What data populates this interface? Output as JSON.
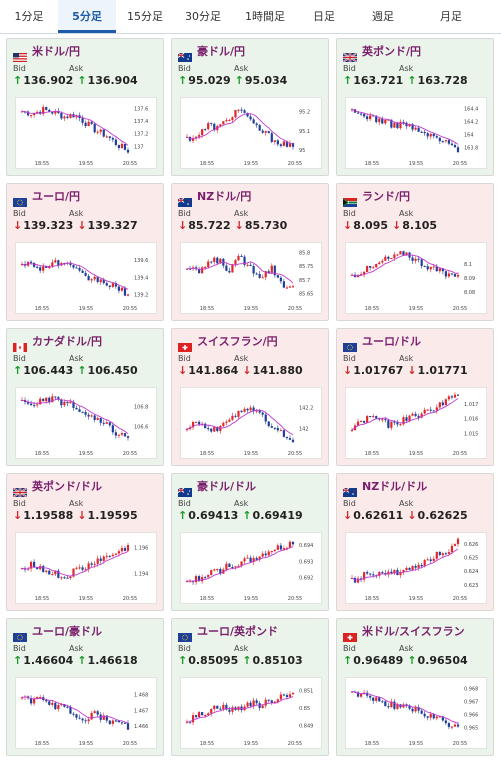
{
  "tabs": [
    {
      "label": "1分足",
      "active": false
    },
    {
      "label": "5分足",
      "active": true
    },
    {
      "label": "15分足",
      "active": false
    },
    {
      "label": "30分足",
      "active": false
    },
    {
      "label": "1時間足",
      "active": false
    },
    {
      "label": "日足",
      "active": false
    },
    {
      "label": "週足",
      "active": false
    },
    {
      "label": "月足",
      "active": false
    }
  ],
  "labels": {
    "bid": "Bid",
    "ask": "Ask"
  },
  "colors": {
    "up_bg": "#eaf4ea",
    "down_bg": "#fbeaea",
    "up_arrow": "#1a9a2a",
    "down_arrow": "#d2262a",
    "bull_candle": "#e0282a",
    "bear_candle": "#1f3f9a",
    "ma_line": "#c23ad1",
    "pair_title": "#7a1f6b"
  },
  "cards": [
    {
      "pair": "米ドル/円",
      "flag": "flag-us-icon",
      "trend": "up",
      "bid": "136.902",
      "ask": "136.904",
      "chart_data": {
        "type": "candlestick",
        "xticks": [
          "18:55",
          "19:55",
          "20:55"
        ],
        "yticks": [
          "137.6",
          "137.4",
          "137.2",
          "137"
        ],
        "ylim": [
          136.88,
          137.7
        ]
      }
    },
    {
      "pair": "豪ドル/円",
      "flag": "flag-au-icon",
      "trend": "up",
      "bid": "95.029",
      "ask": "95.034",
      "chart_data": {
        "type": "candlestick",
        "xticks": [
          "18:55",
          "19:55",
          "20:55"
        ],
        "yticks": [
          "95.2",
          "95.1",
          "95"
        ],
        "ylim": [
          94.98,
          95.25
        ]
      }
    },
    {
      "pair": "英ポンド/円",
      "flag": "flag-gb-icon",
      "trend": "up",
      "bid": "163.721",
      "ask": "163.728",
      "chart_data": {
        "type": "candlestick",
        "xticks": [
          "18:55",
          "19:55",
          "20:55"
        ],
        "yticks": [
          "164.4",
          "164.2",
          "164",
          "163.8"
        ],
        "ylim": [
          163.7,
          164.5
        ]
      }
    },
    {
      "pair": "ユーロ/円",
      "flag": "flag-eu-icon",
      "trend": "down",
      "bid": "139.323",
      "ask": "139.327",
      "chart_data": {
        "type": "candlestick",
        "xticks": [
          "18:55",
          "19:55",
          "20:55"
        ],
        "yticks": [
          "139.6",
          "139.4",
          "139.2"
        ],
        "ylim": [
          139.15,
          139.75
        ]
      }
    },
    {
      "pair": "NZドル/円",
      "flag": "flag-nz-icon",
      "trend": "down",
      "bid": "85.722",
      "ask": "85.730",
      "chart_data": {
        "type": "candlestick",
        "xticks": [
          "18:55",
          "19:55",
          "20:55"
        ],
        "yticks": [
          "85.8",
          "85.75",
          "85.7",
          "85.65"
        ],
        "ylim": [
          85.63,
          85.82
        ]
      }
    },
    {
      "pair": "ランド/円",
      "flag": "flag-za-icon",
      "trend": "down",
      "bid": "8.095",
      "ask": "8.105",
      "chart_data": {
        "type": "candlestick",
        "xticks": [
          "18:55",
          "19:55",
          "20:55"
        ],
        "yticks": [
          "8.1",
          "8.09",
          "8.08"
        ],
        "ylim": [
          8.075,
          8.112
        ]
      }
    },
    {
      "pair": "カナダドル/円",
      "flag": "flag-ca-icon",
      "trend": "up",
      "bid": "106.443",
      "ask": "106.450",
      "chart_data": {
        "type": "candlestick",
        "xticks": [
          "18:55",
          "19:55",
          "20:55"
        ],
        "yticks": [
          "106.8",
          "106.6"
        ],
        "ylim": [
          106.42,
          106.95
        ]
      }
    },
    {
      "pair": "スイスフラン/円",
      "flag": "flag-ch-icon",
      "trend": "down",
      "bid": "141.864",
      "ask": "141.880",
      "chart_data": {
        "type": "candlestick",
        "xticks": [
          "18:55",
          "19:55",
          "20:55"
        ],
        "yticks": [
          "142.2",
          "142"
        ],
        "ylim": [
          141.85,
          142.35
        ]
      }
    },
    {
      "pair": "ユーロ/ドル",
      "flag": "flag-eu-icon",
      "trend": "down",
      "bid": "1.01767",
      "ask": "1.01771",
      "chart_data": {
        "type": "candlestick",
        "xticks": [
          "18:55",
          "19:55",
          "20:55"
        ],
        "yticks": [
          "1.017",
          "1.016",
          "1.015"
        ],
        "ylim": [
          1.0143,
          1.0178
        ]
      }
    },
    {
      "pair": "英ポンド/ドル",
      "flag": "flag-gb-icon",
      "trend": "down",
      "bid": "1.19588",
      "ask": "1.19595",
      "chart_data": {
        "type": "candlestick",
        "xticks": [
          "18:55",
          "19:55",
          "20:55"
        ],
        "yticks": [
          "1.196",
          "1.194"
        ],
        "ylim": [
          1.1928,
          1.1968
        ]
      }
    },
    {
      "pair": "豪ドル/ドル",
      "flag": "flag-au-icon",
      "trend": "up",
      "bid": "0.69413",
      "ask": "0.69419",
      "chart_data": {
        "type": "candlestick",
        "xticks": [
          "18:55",
          "19:55",
          "20:55"
        ],
        "yticks": [
          "0.694",
          "0.693",
          "0.692"
        ],
        "ylim": [
          0.6913,
          0.6945
        ]
      }
    },
    {
      "pair": "NZドル/ドル",
      "flag": "flag-nz-icon",
      "trend": "down",
      "bid": "0.62611",
      "ask": "0.62625",
      "chart_data": {
        "type": "candlestick",
        "xticks": [
          "18:55",
          "19:55",
          "20:55"
        ],
        "yticks": [
          "0.626",
          "0.625",
          "0.624",
          "0.623"
        ],
        "ylim": [
          0.6227,
          0.6265
        ]
      }
    },
    {
      "pair": "ユーロ/豪ドル",
      "flag": "flag-eu-icon",
      "trend": "up",
      "bid": "1.46604",
      "ask": "1.46618",
      "chart_data": {
        "type": "candlestick",
        "xticks": [
          "18:55",
          "19:55",
          "20:55"
        ],
        "yticks": [
          "1.468",
          "1.467",
          "1.466"
        ],
        "ylim": [
          1.4655,
          1.4688
        ]
      }
    },
    {
      "pair": "ユーロ/英ポンド",
      "flag": "flag-eu-icon",
      "trend": "up",
      "bid": "0.85095",
      "ask": "0.85103",
      "chart_data": {
        "type": "candlestick",
        "xticks": [
          "18:55",
          "19:55",
          "20:55"
        ],
        "yticks": [
          "0.851",
          "0.85",
          "0.849"
        ],
        "ylim": [
          0.8485,
          0.8515
        ]
      }
    },
    {
      "pair": "米ドル/スイスフラン",
      "flag": "flag-ch-icon",
      "trend": "up",
      "bid": "0.96489",
      "ask": "0.96504",
      "chart_data": {
        "type": "candlestick",
        "xticks": [
          "18:55",
          "19:55",
          "20:55"
        ],
        "yticks": [
          "0.968",
          "0.967",
          "0.966",
          "0.965"
        ],
        "ylim": [
          0.9645,
          0.9685
        ]
      }
    }
  ]
}
